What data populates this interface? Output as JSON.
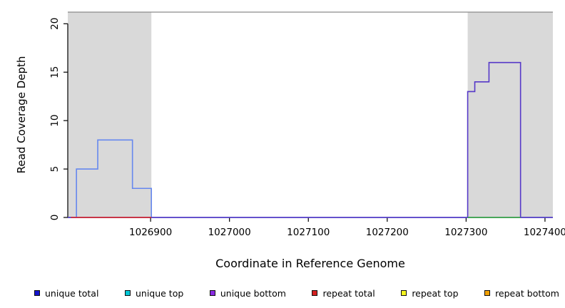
{
  "chart_data": {
    "type": "line",
    "subtype": "step-coverage-plot",
    "title": "",
    "xlabel": "Coordinate in Reference Genome",
    "ylabel": "Read Coverage Depth",
    "xlim": [
      1026795,
      1027410
    ],
    "ylim": [
      0,
      21.2
    ],
    "grid": false,
    "x_ticks": [
      1026900,
      1027000,
      1027100,
      1027200,
      1027300,
      1027400
    ],
    "x_tick_labels": [
      "1026900",
      "1027000",
      "1027100",
      "1027200",
      "1027300",
      "1027400"
    ],
    "y_ticks": [
      0,
      5,
      10,
      15,
      20
    ],
    "y_tick_labels": [
      "0",
      "5",
      "10",
      "15",
      "20"
    ],
    "frame_color": "#8c8c8c",
    "axis_color": "#000000",
    "shaded_regions": [
      {
        "name": "left-repeat-region",
        "x0": 1026795,
        "x1": 1026901,
        "color": "#d9d9d9"
      },
      {
        "name": "right-repeat-region",
        "x0": 1027302,
        "x1": 1027410,
        "color": "#d9d9d9"
      }
    ],
    "series": [
      {
        "name": "unique coverage left (step)",
        "color": "#6688ee",
        "points": [
          [
            1026795,
            0
          ],
          [
            1026806,
            0
          ],
          [
            1026806,
            5
          ],
          [
            1026833,
            5
          ],
          [
            1026833,
            8
          ],
          [
            1026877,
            8
          ],
          [
            1026877,
            3
          ],
          [
            1026901,
            3
          ],
          [
            1026901,
            0
          ],
          [
            1027410,
            0
          ]
        ]
      },
      {
        "name": "unique coverage right (step)",
        "color": "#5538c8",
        "points": [
          [
            1026795,
            0
          ],
          [
            1027302,
            0
          ],
          [
            1027302,
            13
          ],
          [
            1027311,
            13
          ],
          [
            1027311,
            14
          ],
          [
            1027329,
            14
          ],
          [
            1027329,
            16
          ],
          [
            1027369,
            16
          ],
          [
            1027369,
            0
          ],
          [
            1027410,
            0
          ]
        ]
      },
      {
        "name": "red baseline (left repeat region)",
        "color": "#e02222",
        "points": [
          [
            1026799,
            0
          ],
          [
            1026901,
            0
          ]
        ]
      },
      {
        "name": "green baseline (right repeat region)",
        "color": "#33aa33",
        "points": [
          [
            1027302,
            0
          ],
          [
            1027369,
            0
          ]
        ]
      }
    ],
    "legend_position": "bottom",
    "legend": [
      {
        "label": "unique total",
        "color": "#1414cc"
      },
      {
        "label": "unique top",
        "color": "#00c8d7"
      },
      {
        "label": "unique bottom",
        "color": "#8a2be2"
      },
      {
        "label": "repeat total",
        "color": "#d31f1f"
      },
      {
        "label": "repeat top",
        "color": "#f5f520"
      },
      {
        "label": "repeat bottom",
        "color": "#f0a000"
      }
    ]
  }
}
